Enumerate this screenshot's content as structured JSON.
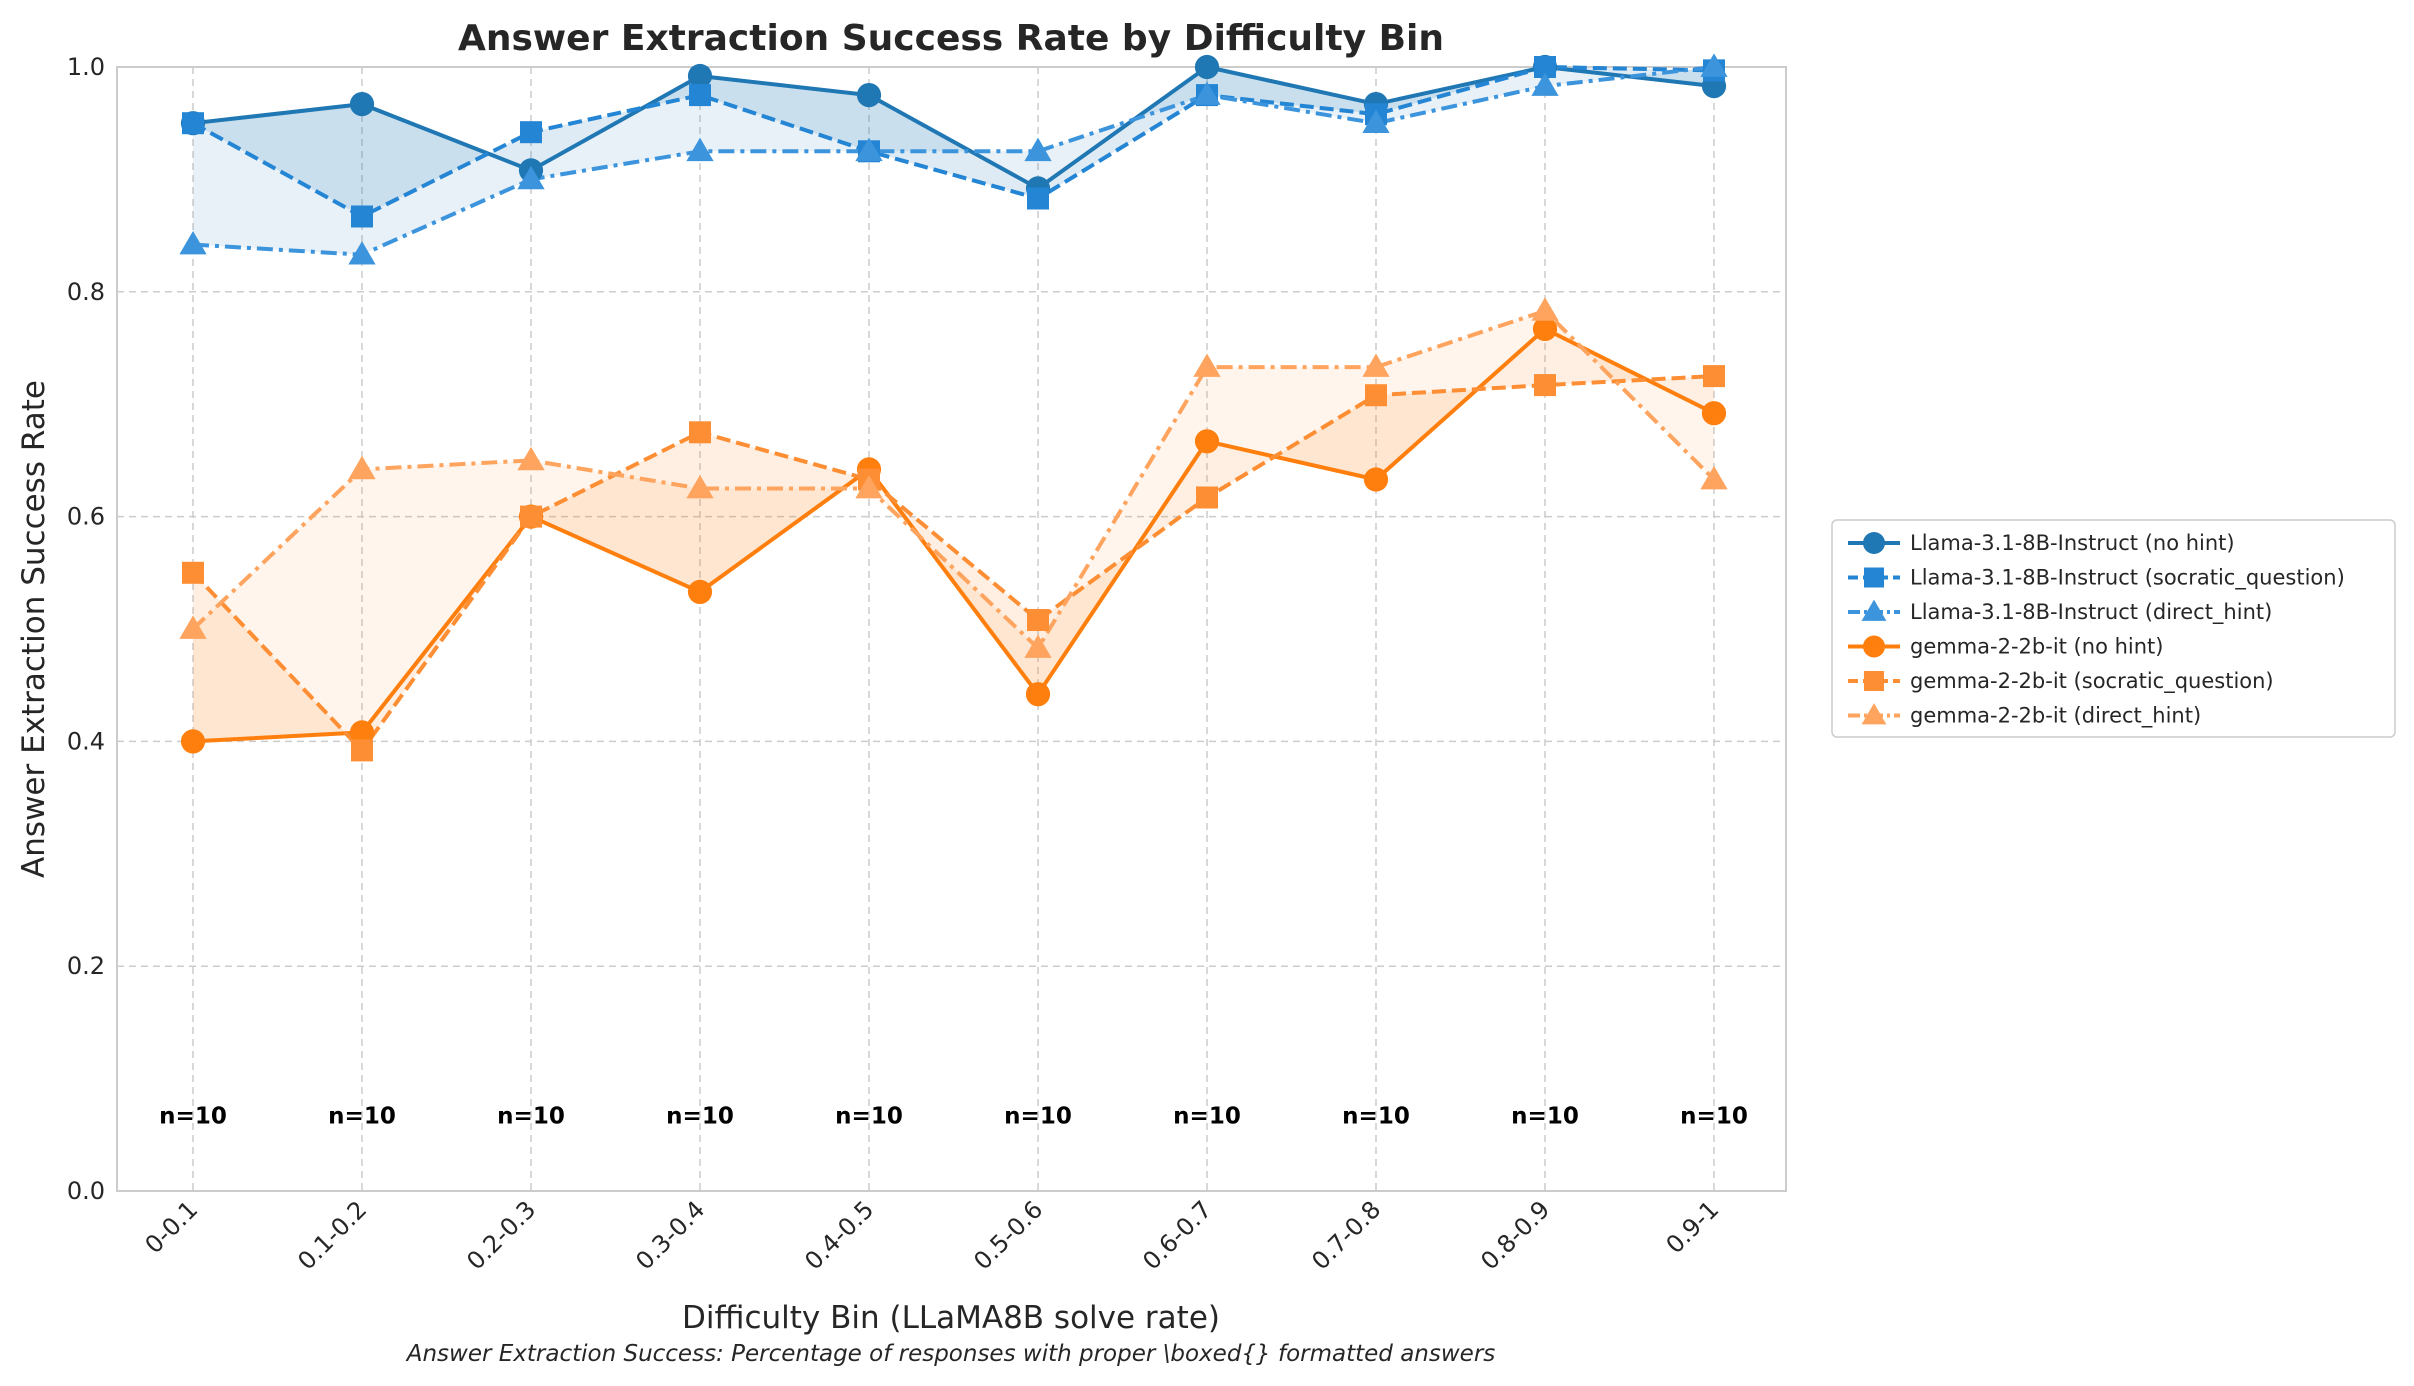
{
  "chart_data": {
    "type": "line",
    "title": "Answer Extraction Success Rate by Difficulty Bin",
    "subtitle": "Answer Extraction Success: Percentage of responses with proper \\boxed{} formatted answers",
    "xlabel": "Difficulty Bin (LLaMA8B solve rate)",
    "ylabel": "Answer Extraction Success Rate",
    "ylim": [
      0,
      1
    ],
    "yticks": [
      "0.0",
      "0.2",
      "0.4",
      "0.6",
      "0.8",
      "1.0"
    ],
    "grid": true,
    "legend_position": "outside-right",
    "categories": [
      "0-0.1",
      "0.1-0.2",
      "0.2-0.3",
      "0.3-0.4",
      "0.4-0.5",
      "0.5-0.6",
      "0.6-0.7",
      "0.7-0.8",
      "0.8-0.9",
      "0.9-1"
    ],
    "sample_counts": [
      "n=10",
      "n=10",
      "n=10",
      "n=10",
      "n=10",
      "n=10",
      "n=10",
      "n=10",
      "n=10",
      "n=10"
    ],
    "series": [
      {
        "name": "Llama-3.1-8B-Instruct (no hint)",
        "color": "#1f77b4",
        "dash": "solid",
        "marker": "circle",
        "values": [
          0.95,
          0.967,
          0.908,
          0.992,
          0.975,
          0.892,
          1.0,
          0.967,
          1.0,
          0.983
        ]
      },
      {
        "name": "Llama-3.1-8B-Instruct (socratic_question)",
        "color": "#2385d4",
        "dash": "dashed",
        "marker": "square",
        "values": [
          0.95,
          0.867,
          0.942,
          0.975,
          0.925,
          0.883,
          0.975,
          0.958,
          1.0,
          0.997
        ]
      },
      {
        "name": "Llama-3.1-8B-Instruct (direct_hint)",
        "color": "#3b94dc",
        "dash": "dashdot",
        "marker": "triangle",
        "values": [
          0.842,
          0.833,
          0.9,
          0.925,
          0.925,
          0.925,
          0.975,
          0.95,
          0.983,
          1.0
        ]
      },
      {
        "name": "gemma-2-2b-it (no hint)",
        "color": "#ff7f0e",
        "dash": "solid",
        "marker": "circle",
        "values": [
          0.4,
          0.408,
          0.6,
          0.533,
          0.642,
          0.442,
          0.667,
          0.633,
          0.767,
          0.692
        ]
      },
      {
        "name": "gemma-2-2b-it (socratic_question)",
        "color": "#fd8e33",
        "dash": "dashed",
        "marker": "square",
        "values": [
          0.55,
          0.392,
          0.6,
          0.675,
          0.633,
          0.508,
          0.617,
          0.708,
          0.717,
          0.725
        ]
      },
      {
        "name": "gemma-2-2b-it (direct_hint)",
        "color": "#fea45e",
        "dash": "dashdot",
        "marker": "triangle",
        "values": [
          0.5,
          0.642,
          0.65,
          0.625,
          0.625,
          0.483,
          0.733,
          0.733,
          0.783,
          0.633
        ]
      }
    ],
    "bands": [
      {
        "group": "Llama-3.1-8B-Instruct",
        "color": "#1f77b4"
      },
      {
        "group": "gemma-2-2b-it",
        "color": "#ff7f0e"
      }
    ]
  }
}
